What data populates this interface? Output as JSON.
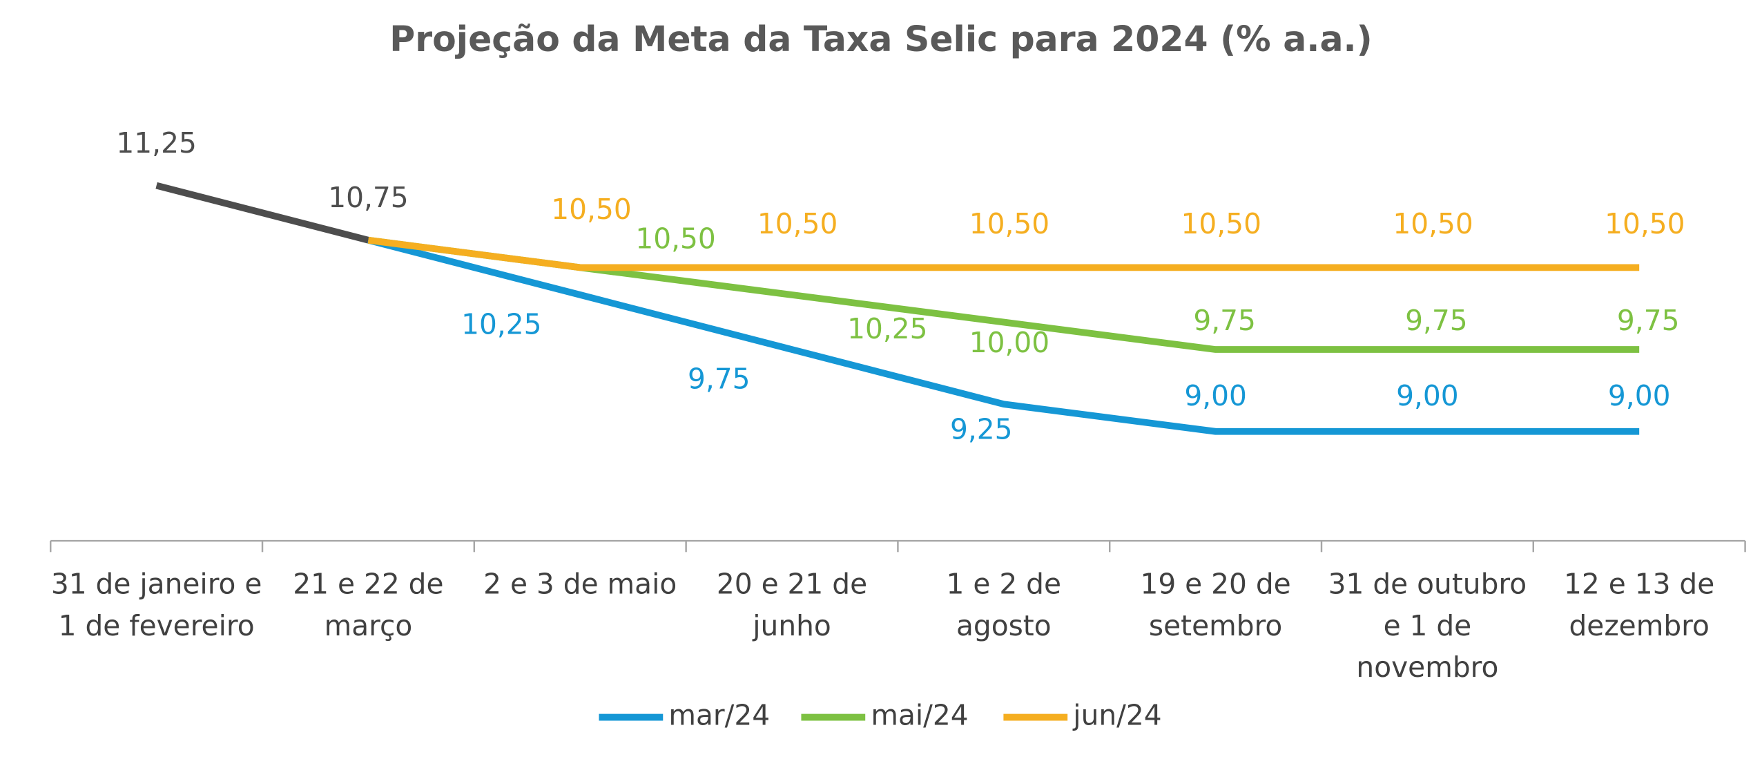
{
  "chart_data": {
    "type": "line",
    "title": "Projeção da Meta da Taxa Selic para 2024 (% a.a.)",
    "categories": [
      "31 de janeiro e\n1 de fevereiro",
      "21 e 22 de\nmarço",
      "2 e 3 de maio",
      "20 e 21 de\njunho",
      "1 e 2 de\nagosto",
      "19 e 20 de\nsetembro",
      "31 de outubro\ne 1 de\nnovembro",
      "12 e 13 de\ndezembro"
    ],
    "series": [
      {
        "color": "#4d4d4d",
        "values": [
          11.25,
          10.75,
          null,
          null,
          null,
          null,
          null,
          null
        ],
        "value_labels": [
          "11,25",
          "10,75",
          null,
          null,
          null,
          null,
          null,
          null
        ]
      },
      {
        "name": "mar/24",
        "color": "#1597d5",
        "values": [
          null,
          10.75,
          10.25,
          9.75,
          9.25,
          9.0,
          9.0,
          9.0
        ],
        "value_labels": [
          null,
          null,
          "10,25",
          "9,75",
          "9,25",
          "9,00",
          "9,00",
          "9,00"
        ]
      },
      {
        "name": "mai/24",
        "color": "#7dc142",
        "values": [
          null,
          10.75,
          10.5,
          10.25,
          10.0,
          9.75,
          9.75,
          9.75
        ],
        "value_labels": [
          null,
          null,
          "10,50",
          "10,25",
          "10,00",
          "9,75",
          "9,75",
          "9,75"
        ]
      },
      {
        "name": "jun/24",
        "color": "#f5ae20",
        "values": [
          null,
          10.75,
          10.5,
          10.5,
          10.5,
          10.5,
          10.5,
          10.5
        ],
        "value_labels": [
          null,
          null,
          "10,50",
          "10,50",
          "10,50",
          "10,50",
          "10,50",
          "10,50"
        ]
      }
    ],
    "ylim": [
      8,
      12
    ],
    "grid": false,
    "legend": "bottom"
  }
}
